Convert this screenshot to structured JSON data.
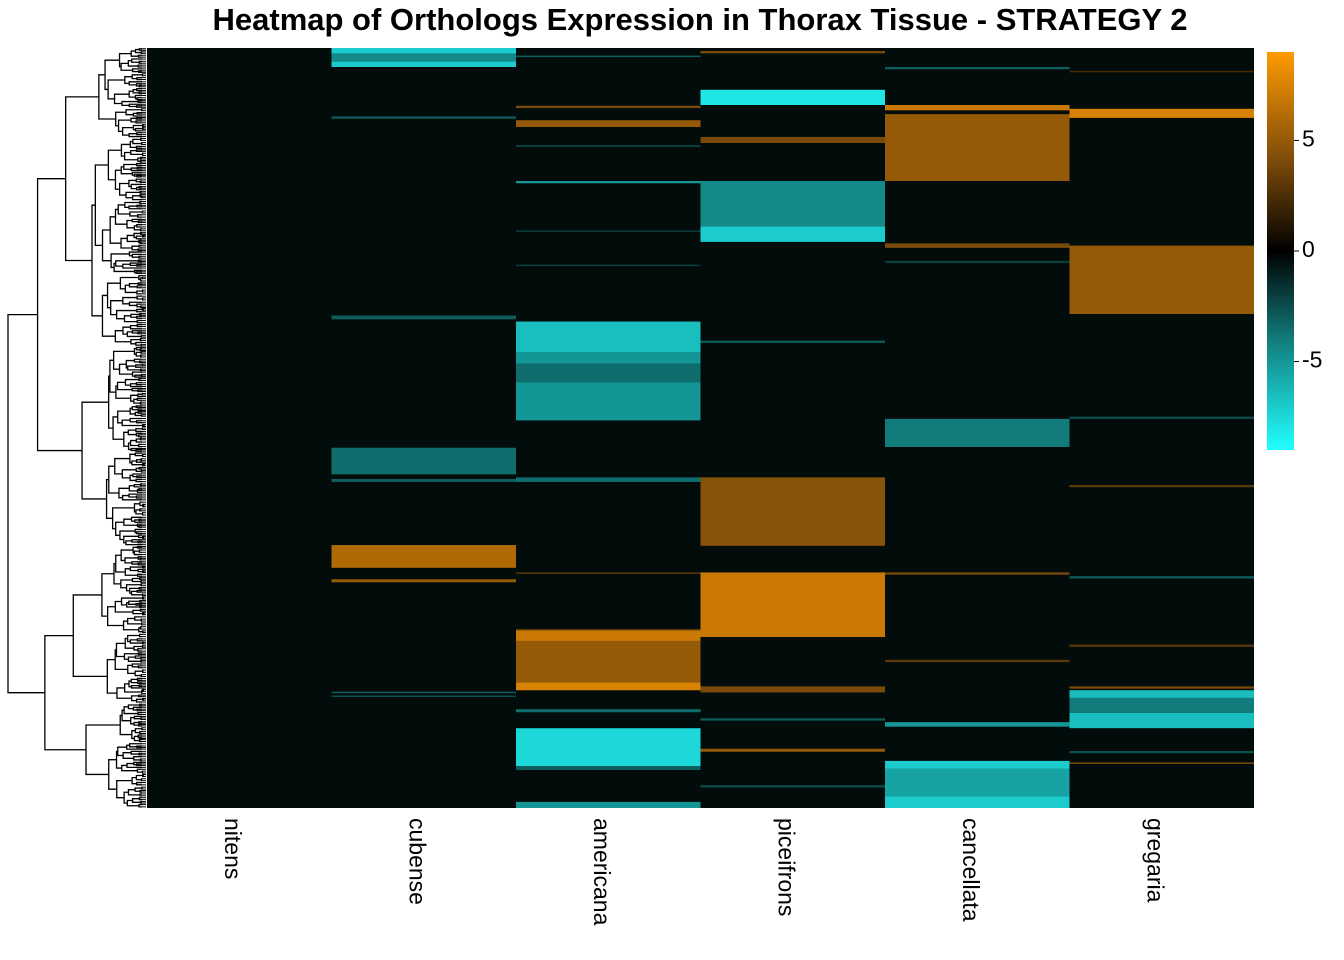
{
  "chart_data": {
    "type": "heatmap",
    "title": "Heatmap of Orthologs Expression in Thorax Tissue - STRATEGY 2",
    "columns": [
      "nitens",
      "cubense",
      "americana",
      "piceifrons",
      "cancellata",
      "gregaria"
    ],
    "row_axis": "row index (genes, ordered by hierarchical clustering), 0-1000 scale",
    "n_rows": 1000,
    "value_range": [
      -9,
      9
    ],
    "colorbar": {
      "ticks": [
        5,
        0,
        -5
      ],
      "tick_labels": [
        "5",
        "0",
        "-5"
      ],
      "stops": [
        {
          "value": -9,
          "color": "#22ffff"
        },
        {
          "value": -4,
          "color": "#127c7c"
        },
        {
          "value": 0,
          "color": "#000000"
        },
        {
          "value": 4,
          "color": "#7a4a0a"
        },
        {
          "value": 9,
          "color": "#ff9a00"
        }
      ]
    },
    "blocks": [
      {
        "column": "cubense",
        "start": 0,
        "end": 25,
        "value": -7
      },
      {
        "column": "cubense",
        "start": 7,
        "end": 18,
        "value": -4.5
      },
      {
        "column": "cubense",
        "start": 90,
        "end": 93,
        "value": -3
      },
      {
        "column": "cubense",
        "start": 352,
        "end": 357,
        "value": -3
      },
      {
        "column": "cubense",
        "start": 526,
        "end": 561,
        "value": -3.5
      },
      {
        "column": "cubense",
        "start": 567,
        "end": 571,
        "value": -3
      },
      {
        "column": "cubense",
        "start": 654,
        "end": 684,
        "value": 6
      },
      {
        "column": "cubense",
        "start": 699,
        "end": 703,
        "value": 5
      },
      {
        "column": "cubense",
        "start": 847,
        "end": 849,
        "value": -3
      },
      {
        "column": "cubense",
        "start": 852,
        "end": 854,
        "value": -2.5
      },
      {
        "column": "americana",
        "start": 10,
        "end": 12,
        "value": -3
      },
      {
        "column": "americana",
        "start": 76,
        "end": 79,
        "value": 4
      },
      {
        "column": "americana",
        "start": 95,
        "end": 104,
        "value": 5
      },
      {
        "column": "americana",
        "start": 128,
        "end": 130,
        "value": -2.5
      },
      {
        "column": "americana",
        "start": 175,
        "end": 178,
        "value": -5
      },
      {
        "column": "americana",
        "start": 240,
        "end": 242,
        "value": -2
      },
      {
        "column": "americana",
        "start": 285,
        "end": 287,
        "value": -2
      },
      {
        "column": "americana",
        "start": 360,
        "end": 490,
        "value": -5
      },
      {
        "column": "americana",
        "start": 360,
        "end": 400,
        "value": -6.5
      },
      {
        "column": "americana",
        "start": 415,
        "end": 440,
        "value": -3.5
      },
      {
        "column": "americana",
        "start": 565,
        "end": 571,
        "value": -3.5
      },
      {
        "column": "americana",
        "start": 690,
        "end": 692,
        "value": 3
      },
      {
        "column": "americana",
        "start": 765,
        "end": 845,
        "value": 5
      },
      {
        "column": "americana",
        "start": 767,
        "end": 780,
        "value": 7
      },
      {
        "column": "americana",
        "start": 835,
        "end": 845,
        "value": 7.5
      },
      {
        "column": "americana",
        "start": 870,
        "end": 874,
        "value": -3.5
      },
      {
        "column": "americana",
        "start": 895,
        "end": 945,
        "value": -7.5
      },
      {
        "column": "americana",
        "start": 945,
        "end": 950,
        "value": -3
      },
      {
        "column": "americana",
        "start": 992,
        "end": 1000,
        "value": -5
      },
      {
        "column": "piceifrons",
        "start": 4,
        "end": 7,
        "value": 4
      },
      {
        "column": "piceifrons",
        "start": 55,
        "end": 75,
        "value": -8
      },
      {
        "column": "piceifrons",
        "start": 117,
        "end": 125,
        "value": 4
      },
      {
        "column": "piceifrons",
        "start": 175,
        "end": 255,
        "value": -4.5
      },
      {
        "column": "piceifrons",
        "start": 235,
        "end": 255,
        "value": -7
      },
      {
        "column": "piceifrons",
        "start": 385,
        "end": 388,
        "value": -3
      },
      {
        "column": "piceifrons",
        "start": 565,
        "end": 655,
        "value": 4.5
      },
      {
        "column": "piceifrons",
        "start": 690,
        "end": 775,
        "value": 7
      },
      {
        "column": "piceifrons",
        "start": 840,
        "end": 848,
        "value": 4
      },
      {
        "column": "piceifrons",
        "start": 882,
        "end": 885,
        "value": -3
      },
      {
        "column": "piceifrons",
        "start": 922,
        "end": 926,
        "value": 5
      },
      {
        "column": "piceifrons",
        "start": 970,
        "end": 973,
        "value": -2.5
      },
      {
        "column": "cancellata",
        "start": 25,
        "end": 28,
        "value": -3
      },
      {
        "column": "cancellata",
        "start": 75,
        "end": 82,
        "value": 7
      },
      {
        "column": "cancellata",
        "start": 87,
        "end": 175,
        "value": 5
      },
      {
        "column": "cancellata",
        "start": 257,
        "end": 263,
        "value": 4
      },
      {
        "column": "cancellata",
        "start": 280,
        "end": 283,
        "value": -2
      },
      {
        "column": "cancellata",
        "start": 488,
        "end": 525,
        "value": -4
      },
      {
        "column": "cancellata",
        "start": 690,
        "end": 693,
        "value": 4
      },
      {
        "column": "cancellata",
        "start": 805,
        "end": 808,
        "value": 3
      },
      {
        "column": "cancellata",
        "start": 887,
        "end": 893,
        "value": -5
      },
      {
        "column": "cancellata",
        "start": 938,
        "end": 1000,
        "value": -7
      },
      {
        "column": "cancellata",
        "start": 948,
        "end": 985,
        "value": -5.5
      },
      {
        "column": "gregaria",
        "start": 30,
        "end": 32,
        "value": 2.5
      },
      {
        "column": "gregaria",
        "start": 80,
        "end": 92,
        "value": 7.5
      },
      {
        "column": "gregaria",
        "start": 260,
        "end": 350,
        "value": 5
      },
      {
        "column": "gregaria",
        "start": 485,
        "end": 488,
        "value": -2.5
      },
      {
        "column": "gregaria",
        "start": 575,
        "end": 578,
        "value": 3
      },
      {
        "column": "gregaria",
        "start": 695,
        "end": 698,
        "value": -3
      },
      {
        "column": "gregaria",
        "start": 785,
        "end": 788,
        "value": 3
      },
      {
        "column": "gregaria",
        "start": 840,
        "end": 843,
        "value": 4
      },
      {
        "column": "gregaria",
        "start": 845,
        "end": 895,
        "value": -6.5
      },
      {
        "column": "gregaria",
        "start": 855,
        "end": 875,
        "value": -4
      },
      {
        "column": "gregaria",
        "start": 925,
        "end": 928,
        "value": -2.5
      },
      {
        "column": "gregaria",
        "start": 940,
        "end": 942,
        "value": 4
      }
    ],
    "row_dendrogram": true
  }
}
